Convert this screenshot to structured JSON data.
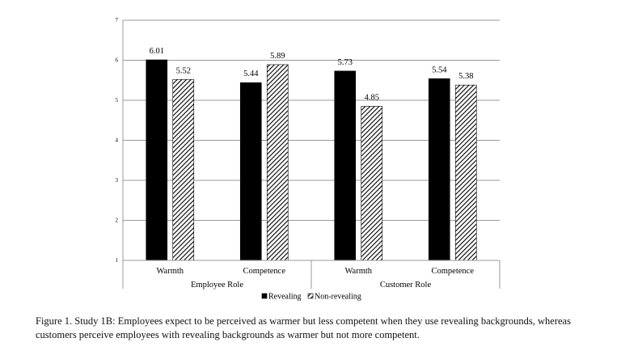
{
  "chart_data": {
    "type": "bar",
    "ylim": [
      1,
      7
    ],
    "yticks": [
      1,
      2,
      3,
      4,
      5,
      6,
      7
    ],
    "grid": true,
    "groups": [
      {
        "label": "Employee Role",
        "categories": [
          "Warmth",
          "Competence"
        ]
      },
      {
        "label": "Customer Role",
        "categories": [
          "Warmth",
          "Competence"
        ]
      }
    ],
    "series": [
      {
        "name": "Revealing",
        "color": "#000000",
        "pattern": "solid",
        "values": [
          6.01,
          5.44,
          5.73,
          5.54
        ],
        "labels": [
          "6.01",
          "5.44",
          "5.73",
          "5.54"
        ]
      },
      {
        "name": "Non-revealing",
        "color": "#000000",
        "pattern": "hatched",
        "values": [
          5.52,
          5.89,
          4.85,
          5.38
        ],
        "labels": [
          "5.52",
          "5.89",
          "4.85",
          "5.38"
        ]
      }
    ],
    "legend_position": "bottom"
  },
  "caption": "Figure 1. Study 1B: Employees expect to be perceived as warmer but less competent when they use revealing backgrounds, whereas customers perceive employees with revealing backgrounds as warmer but not more competent."
}
